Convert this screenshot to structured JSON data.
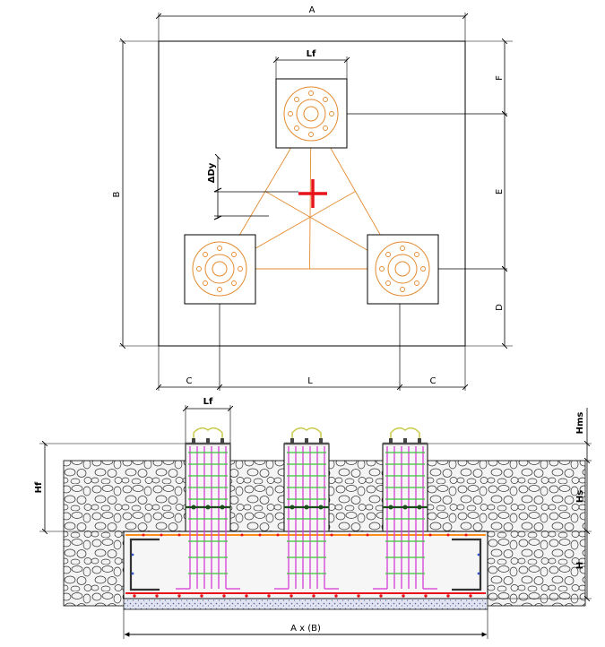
{
  "plan": {
    "dims": {
      "A": "A",
      "B": "B",
      "Lf": "Lf",
      "F": "F",
      "E": "E",
      "D": "D",
      "dy": "ΔDy",
      "C_left": "C",
      "L": "L",
      "C_right": "C"
    }
  },
  "section": {
    "dims": {
      "Lf": "Lf",
      "Hf": "Hf",
      "Hms": "Hms",
      "Hs": "Hs",
      "H": "H",
      "base": "A x (B)"
    }
  },
  "colors": {
    "outline": "#000000",
    "pedestal": "#e38b2f",
    "center_mark": "#e8141b",
    "rebar_vertical": "#d63cd6",
    "rebar_tie": "#3ec23e",
    "bottom_bar": "#e8141b",
    "top_bar": "#ff8c1a",
    "bolt": "#c9c94a",
    "lean_concrete": "#b8c0d8"
  }
}
